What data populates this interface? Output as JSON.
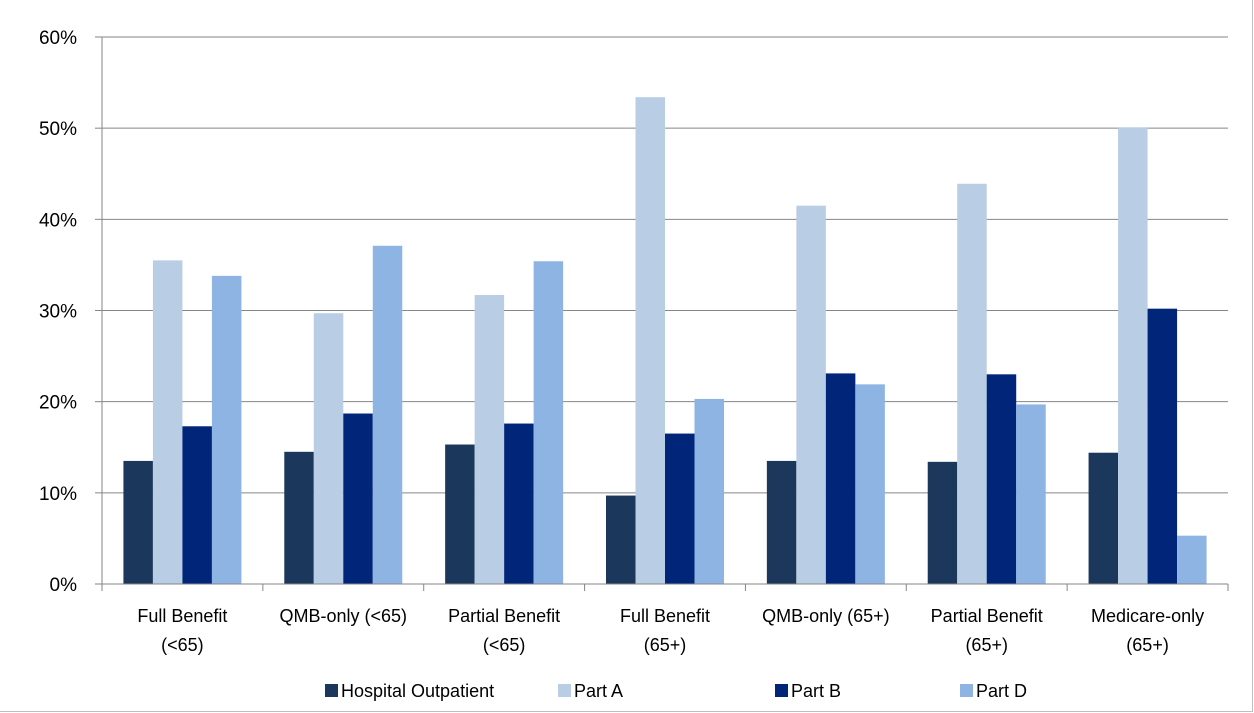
{
  "chart_data": {
    "type": "bar",
    "title": "",
    "xlabel": "",
    "ylabel": "",
    "ylim": [
      0,
      60
    ],
    "y_ticks": [
      "0%",
      "10%",
      "20%",
      "30%",
      "40%",
      "50%",
      "60%"
    ],
    "y_tick_values": [
      0,
      10,
      20,
      30,
      40,
      50,
      60
    ],
    "grid": true,
    "legend_position": "bottom",
    "categories": [
      [
        "Full Benefit",
        "(<65)"
      ],
      [
        "QMB-only (<65)"
      ],
      [
        "Partial Benefit",
        "(<65)"
      ],
      [
        "Full Benefit",
        "(65+)"
      ],
      [
        "QMB-only (65+)"
      ],
      [
        "Partial Benefit",
        "(65+)"
      ],
      [
        "Medicare-only",
        "(65+)"
      ]
    ],
    "series": [
      {
        "name": "Hospital Outpatient",
        "color": "#1b375c",
        "values": [
          13.5,
          14.5,
          15.3,
          9.7,
          13.5,
          13.4,
          14.4
        ]
      },
      {
        "name": "Part A",
        "color": "#b9cde5",
        "values": [
          35.5,
          29.7,
          31.7,
          53.4,
          41.5,
          43.9,
          50.1
        ]
      },
      {
        "name": "Part B",
        "color": "#002579",
        "values": [
          17.3,
          18.7,
          17.6,
          16.5,
          23.1,
          23.0,
          30.2
        ]
      },
      {
        "name": "Part D",
        "color": "#8eb4e3",
        "values": [
          33.8,
          37.1,
          35.4,
          20.3,
          21.9,
          19.7,
          5.3
        ]
      }
    ]
  }
}
